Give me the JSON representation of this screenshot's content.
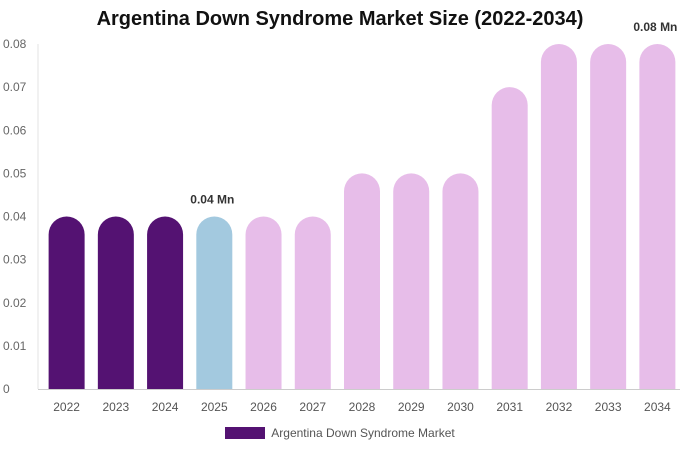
{
  "chart_data": {
    "type": "bar",
    "title": "Argentina Down Syndrome Market Size (2022-2034)",
    "categories": [
      "2022",
      "2023",
      "2024",
      "2025",
      "2026",
      "2027",
      "2028",
      "2029",
      "2030",
      "2031",
      "2032",
      "2033",
      "2034"
    ],
    "series": [
      {
        "name": "Argentina Down Syndrome Market",
        "values": [
          0.04,
          0.04,
          0.04,
          0.04,
          0.04,
          0.04,
          0.05,
          0.05,
          0.05,
          0.07,
          0.08,
          0.08,
          0.08
        ]
      }
    ],
    "y_ticks": [
      "0",
      "0.01",
      "0.02",
      "0.03",
      "0.04",
      "0.05",
      "0.06",
      "0.07",
      "0.08"
    ],
    "ylim": [
      0,
      0.08
    ],
    "data_labels": [
      {
        "category": "2025",
        "text": "0.04 Mn"
      },
      {
        "category": "2034",
        "text": "0.08 Mn"
      }
    ],
    "bar_colors": [
      "#541272",
      "#541272",
      "#541272",
      "#a3c9df",
      "#e7bde9",
      "#e7bde9",
      "#e7bde9",
      "#e7bde9",
      "#e7bde9",
      "#e7bde9",
      "#e7bde9",
      "#e7bde9",
      "#e7bde9"
    ],
    "legend_position": "bottom",
    "grid": false
  },
  "legend": {
    "label": "Argentina Down Syndrome Market",
    "color": "#541272"
  }
}
